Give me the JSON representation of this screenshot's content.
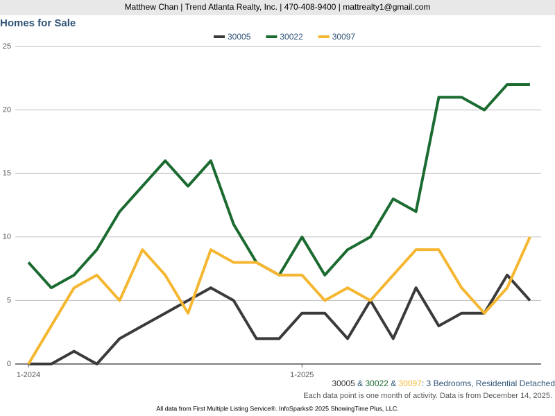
{
  "header": "Matthew Chan | Trend Atlanta Realty, Inc. | 470-408-9400 | mattrealty1@gmail.com",
  "chart_data": {
    "type": "line",
    "title": "Homes for Sale",
    "categories": [
      "1-2024",
      null,
      null,
      null,
      null,
      null,
      null,
      null,
      null,
      null,
      null,
      null,
      "1-2025",
      null,
      null,
      null,
      null,
      null,
      null,
      null,
      null,
      null,
      null
    ],
    "series": [
      {
        "name": "30005",
        "color": "#3a3a3a",
        "values": [
          0,
          0,
          1,
          0,
          2,
          3,
          4,
          5,
          6,
          5,
          2,
          2,
          4,
          4,
          2,
          5,
          2,
          6,
          3,
          4,
          4,
          7,
          5
        ]
      },
      {
        "name": "30022",
        "color": "#1b6b31",
        "values": [
          8,
          6,
          7,
          9,
          12,
          14,
          16,
          14,
          16,
          11,
          8,
          7,
          10,
          7,
          9,
          10,
          13,
          12,
          21,
          21,
          20,
          22,
          22
        ]
      },
      {
        "name": "30097",
        "color": "#f5b731",
        "values": [
          0,
          3,
          6,
          7,
          5,
          9,
          7,
          4,
          9,
          8,
          8,
          7,
          7,
          5,
          6,
          5,
          7,
          9,
          9,
          6,
          4,
          6,
          10
        ]
      }
    ],
    "ylim": [
      0,
      25
    ],
    "yticks": [
      0,
      5,
      10,
      15,
      20,
      25
    ],
    "grid": true,
    "legend": "top",
    "caption_connector": " & ",
    "caption_detail": ": 3 Bedrooms, Residential Detached",
    "note": "Each data point is one month of activity. Data is from December 14, 2025."
  },
  "footer": "All data from First Multiple Listing Service®. InfoSparks© 2025 ShowingTime Plus, LLC."
}
